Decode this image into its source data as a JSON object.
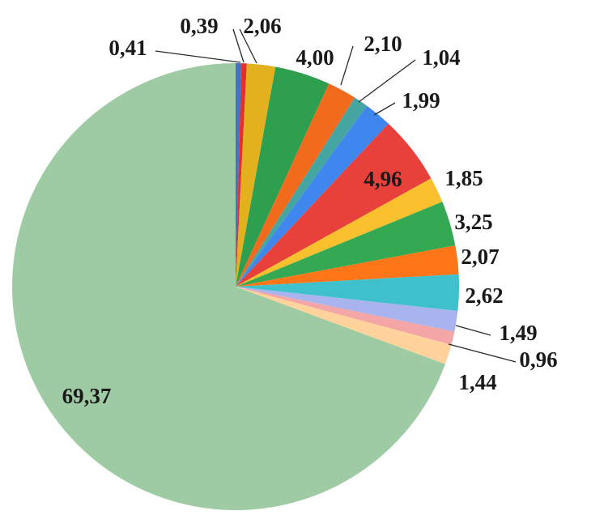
{
  "chart_data": {
    "type": "pie",
    "title": "",
    "values": [
      0.41,
      0.39,
      2.06,
      4.0,
      2.1,
      1.04,
      1.99,
      4.96,
      1.85,
      3.25,
      2.07,
      2.62,
      1.49,
      0.96,
      1.44,
      69.37
    ],
    "labels": [
      "0,41",
      "0,39",
      "2,06",
      "4,00",
      "2,10",
      "1,04",
      "1,99",
      "4,96",
      "1,85",
      "3,25",
      "2,07",
      "2,62",
      "1,49",
      "0,96",
      "1,44",
      "69,37"
    ],
    "colors": [
      "#4472C4",
      "#E0312E",
      "#E4B11E",
      "#2E9E4F",
      "#F26B1D",
      "#45A5A1",
      "#3F86EE",
      "#E8413B",
      "#FBC02D",
      "#34A853",
      "#FF7518",
      "#3EC1CC",
      "#A9B4EE",
      "#F4A6A6",
      "#FFD39B",
      "#9FCBA4"
    ],
    "start_angle_deg": 0,
    "direction": "clockwise",
    "legend": "none"
  }
}
